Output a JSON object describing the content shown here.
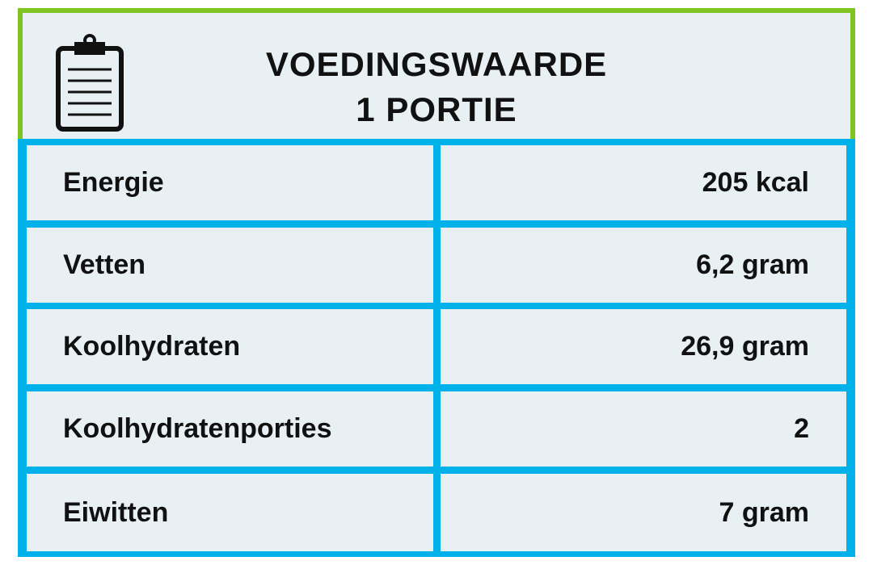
{
  "header": {
    "icon": "clipboard-icon",
    "title_line1": "VOEDINGSWAARDE",
    "title_line2": "1 PORTIE"
  },
  "nutrition": [
    {
      "label": "Energie",
      "value": "205 kcal"
    },
    {
      "label": "Vetten",
      "value": "6,2 gram"
    },
    {
      "label": "Koolhydraten",
      "value": "26,9 gram"
    },
    {
      "label": "Koolhydratenporties",
      "value": "2"
    },
    {
      "label": "Eiwitten",
      "value": "7 gram"
    }
  ],
  "colors": {
    "header_border": "#80c423",
    "table_border": "#00b1ea",
    "cell_background": "#e8f0f4",
    "text": "#111111"
  }
}
